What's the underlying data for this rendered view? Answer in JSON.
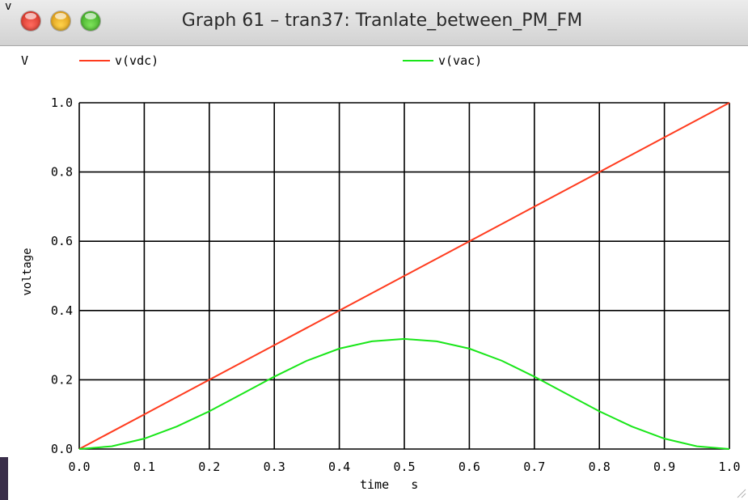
{
  "window": {
    "title": "Graph 61 – tran37: Tranlate_between_PM_FM",
    "edge_glyph": "v"
  },
  "chart_data": {
    "type": "line",
    "unit_label": "V",
    "ylabel": "voltage",
    "xlabel": "time",
    "xunit": "s",
    "xlim": [
      0.0,
      1.0
    ],
    "ylim": [
      0.0,
      1.0
    ],
    "xticks": [
      0.0,
      0.1,
      0.2,
      0.3,
      0.4,
      0.5,
      0.6,
      0.7,
      0.8,
      0.9,
      1.0
    ],
    "yticks": [
      0.0,
      0.2,
      0.4,
      0.6,
      0.8,
      1.0
    ],
    "xtick_labels": [
      "0.0",
      "0.1",
      "0.2",
      "0.3",
      "0.4",
      "0.5",
      "0.6",
      "0.7",
      "0.8",
      "0.9",
      "1.0"
    ],
    "ytick_labels": [
      "0.0",
      "0.2",
      "0.4",
      "0.6",
      "0.8",
      "1.0"
    ],
    "grid": true,
    "legend_placement": "top",
    "series": [
      {
        "name": "v(vdc)",
        "color": "#ff3b1e",
        "x": [
          0.0,
          0.1,
          0.2,
          0.3,
          0.4,
          0.5,
          0.6,
          0.7,
          0.8,
          0.9,
          1.0
        ],
        "y": [
          0.0,
          0.1,
          0.2,
          0.3,
          0.4,
          0.5,
          0.6,
          0.7,
          0.8,
          0.9,
          1.0
        ]
      },
      {
        "name": "v(vac)",
        "color": "#19e619",
        "x": [
          0.0,
          0.05,
          0.1,
          0.15,
          0.2,
          0.25,
          0.3,
          0.35,
          0.4,
          0.45,
          0.5,
          0.55,
          0.6,
          0.65,
          0.7,
          0.75,
          0.8,
          0.85,
          0.9,
          0.95,
          1.0
        ],
        "y": [
          0.0,
          0.008,
          0.03,
          0.065,
          0.109,
          0.159,
          0.209,
          0.255,
          0.29,
          0.311,
          0.318,
          0.311,
          0.29,
          0.255,
          0.209,
          0.159,
          0.109,
          0.065,
          0.03,
          0.008,
          0.0
        ]
      }
    ]
  }
}
